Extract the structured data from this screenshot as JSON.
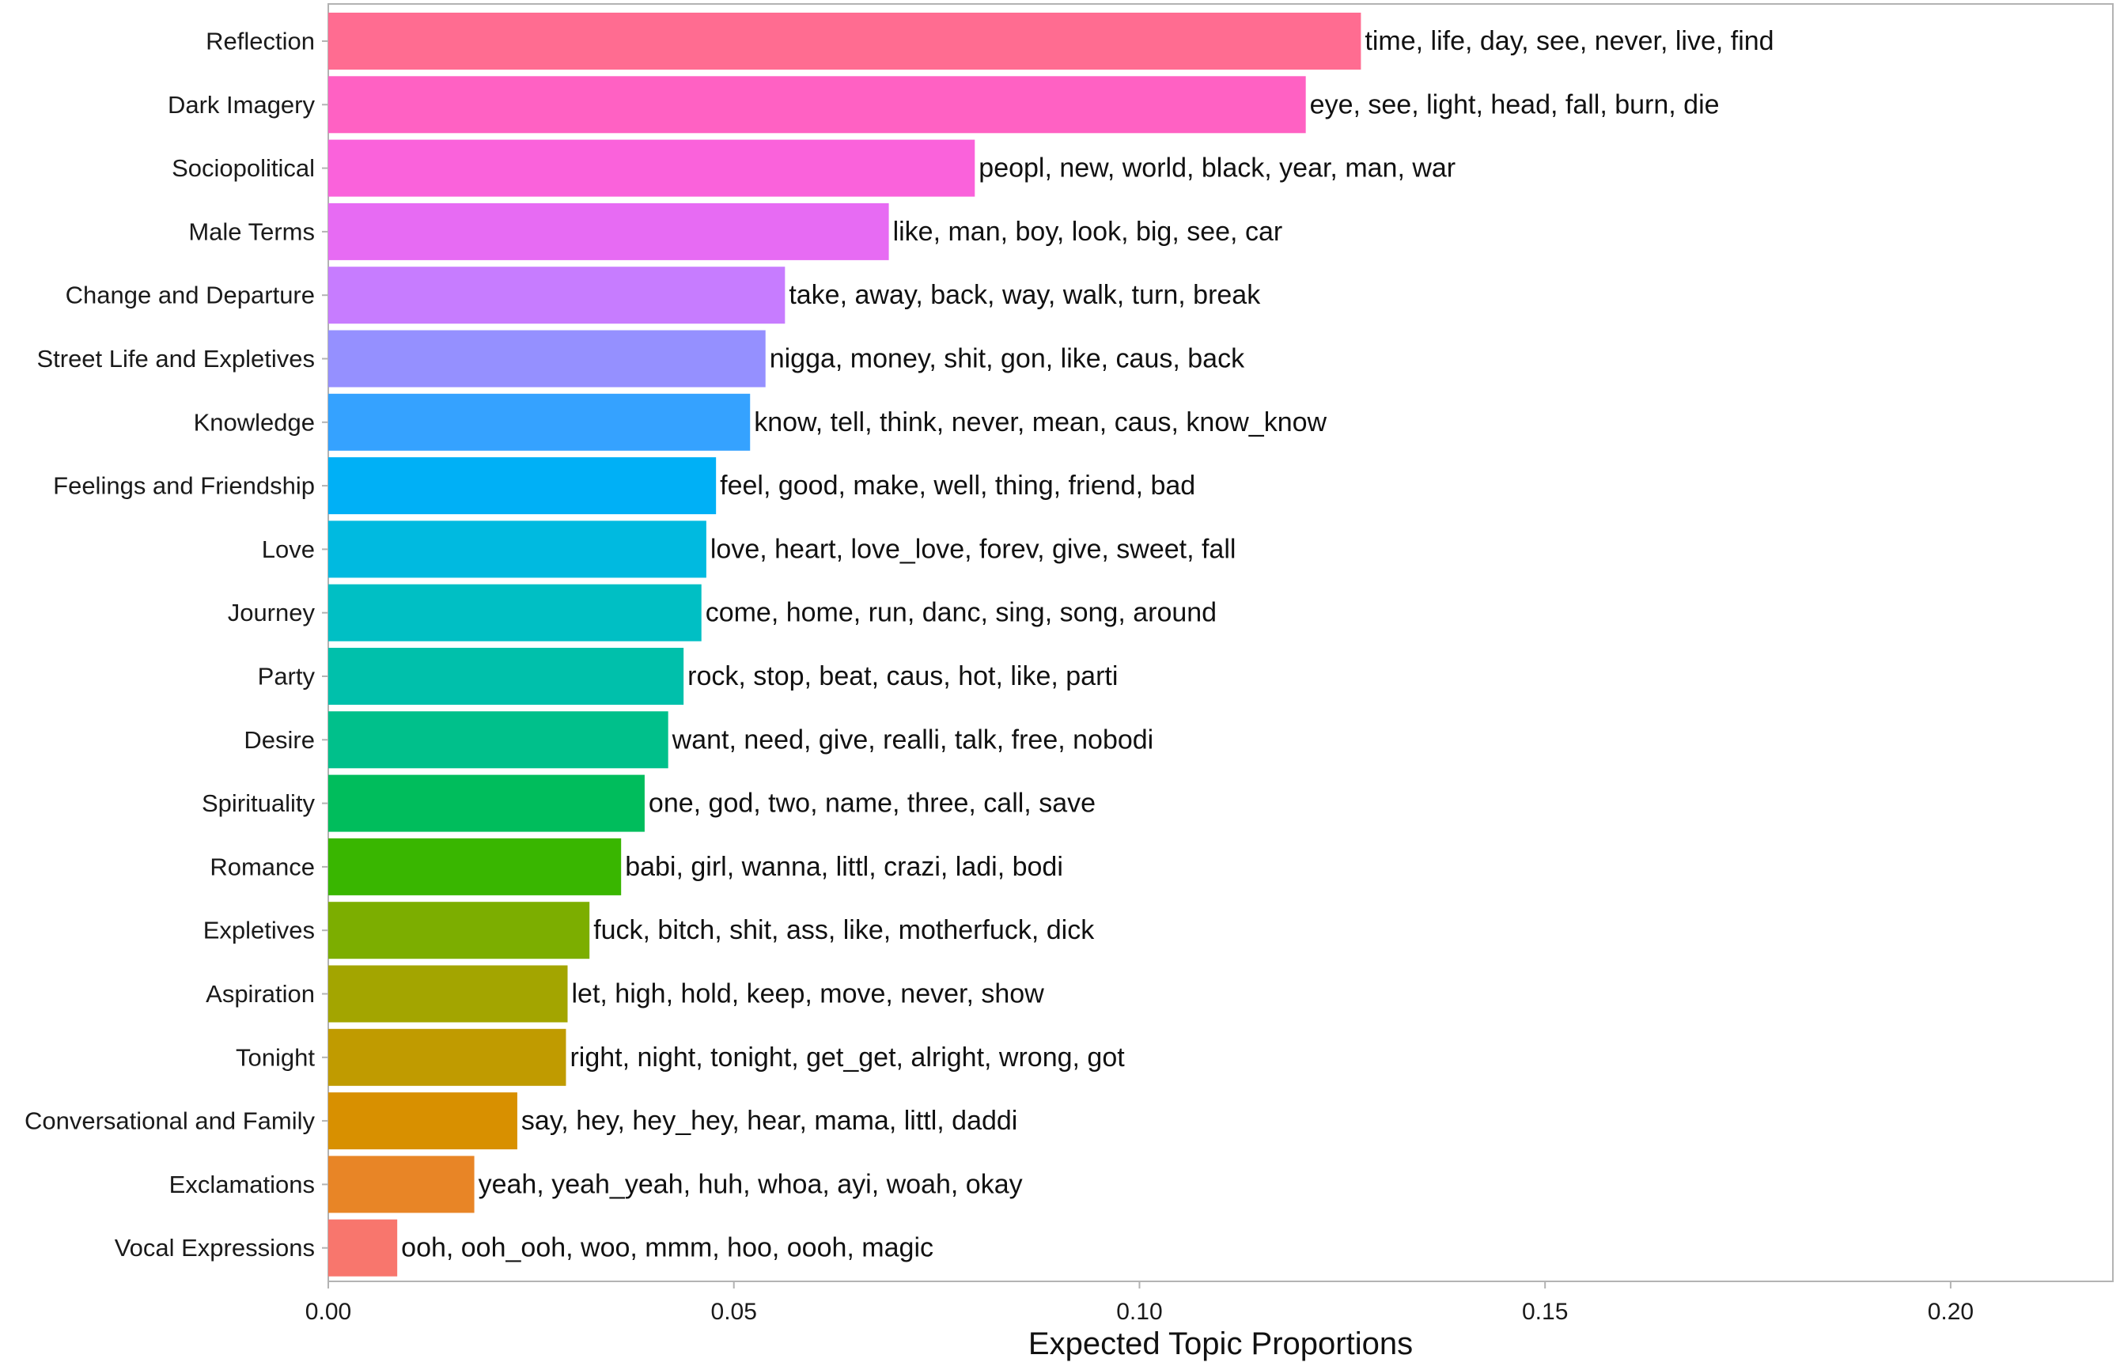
{
  "chart_data": {
    "type": "bar",
    "orientation": "horizontal",
    "title": "",
    "xlabel": "Expected Topic Proportions",
    "ylabel": "",
    "xlim": [
      0,
      0.22
    ],
    "xticks": [
      0.0,
      0.05,
      0.1,
      0.15,
      0.2
    ],
    "xtick_labels": [
      "0.00",
      "0.05",
      "0.10",
      "0.15",
      "0.20"
    ],
    "grid": false,
    "categories": [
      "Reflection",
      "Dark Imagery",
      "Sociopolitical",
      "Male Terms",
      "Change and Departure",
      "Street Life and Expletives",
      "Knowledge",
      "Feelings and Friendship",
      "Love",
      "Journey",
      "Party",
      "Desire",
      "Spirituality",
      "Romance",
      "Expletives",
      "Aspiration",
      "Tonight",
      "Conversational and Family",
      "Exclamations",
      "Vocal Expressions"
    ],
    "values": [
      0.1273,
      0.1205,
      0.0797,
      0.0691,
      0.0563,
      0.0539,
      0.052,
      0.0478,
      0.0466,
      0.046,
      0.0438,
      0.0419,
      0.039,
      0.0361,
      0.0322,
      0.0295,
      0.0293,
      0.0233,
      0.018,
      0.0085
    ],
    "bar_labels": [
      "time, life, day, see, never, live, find",
      "eye, see, light, head, fall, burn, die",
      "peopl, new, world, black, year, man, war",
      "like, man, boy, look, big, see, car",
      "take, away, back, way, walk, turn, break",
      "nigga, money, shit, gon, like, caus, back",
      "know, tell, think, never, mean, caus, know_know",
      "feel, good, make, well, thing, friend, bad",
      "love, heart, love_love, forev, give, sweet, fall",
      "come, home, run, danc, sing, song, around",
      "rock, stop, beat, caus, hot, like, parti",
      "want, need, give, realli, talk, free, nobodi",
      "one, god, two, name, three, call, save",
      "babi, girl, wanna, littl, crazi, ladi, bodi",
      "fuck, bitch, shit, ass, like, motherfuck, dick",
      "let, high, hold, keep, move, never, show",
      "right, night, tonight, get_get, alright, wrong, got",
      "say, hey, hey_hey, hear, mama, littl, daddi",
      "yeah, yeah_yeah, huh, whoa, ayi, woah, okay",
      "ooh, ooh_ooh, woo, mmm, hoo, oooh, magic"
    ],
    "colors": [
      "#FF6C91",
      "#FF61C3",
      "#FA62DB",
      "#E76BF3",
      "#C77CFF",
      "#9590FF",
      "#35A2FF",
      "#00B0F6",
      "#00BAE0",
      "#00BFC4",
      "#00C0AB",
      "#00C08B",
      "#00BD5C",
      "#39B600",
      "#7CAE00",
      "#A3A500",
      "#C09B00",
      "#D89000",
      "#E88526",
      "#F8766D"
    ]
  }
}
